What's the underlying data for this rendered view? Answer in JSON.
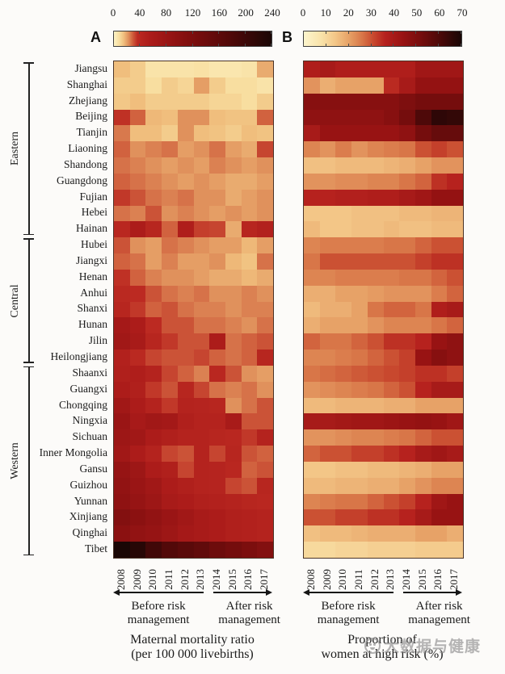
{
  "watermark": {
    "icon": "circle-smiley-logo",
    "text": "大数据与健康"
  },
  "chart_data": {
    "type": "heatmap",
    "x_years": [
      "2008",
      "2009",
      "2010",
      "2011",
      "2012",
      "2013",
      "2014",
      "2015",
      "2016",
      "2017"
    ],
    "x_annotation": {
      "before_lines": [
        "Before risk",
        "management"
      ],
      "after_lines": [
        "After risk",
        "management"
      ],
      "before_col_count": 6
    },
    "row_groups": [
      {
        "label": "Eastern",
        "count": 11
      },
      {
        "label": "Central",
        "count": 8
      },
      {
        "label": "Western",
        "count": 12
      }
    ],
    "row_labels": [
      "Jiangsu",
      "Shanghai",
      "Zhejiang",
      "Beijing",
      "Tianjin",
      "Liaoning",
      "Shandong",
      "Guangdong",
      "Fujian",
      "Hebei",
      "Hainan",
      "Hubei",
      "Jiangxi",
      "Henan",
      "Anhui",
      "Shanxi",
      "Hunan",
      "Jilin",
      "Heilongjiang",
      "Shaanxi",
      "Guangxi",
      "Chongqing",
      "Ningxia",
      "Sichuan",
      "Inner Mongolia",
      "Gansu",
      "Guizhou",
      "Yunnan",
      "Xinjiang",
      "Qinghai",
      "Tibet"
    ],
    "panels": [
      {
        "label": "A",
        "xlabel_lines": [
          "Maternal mortality ratio",
          "(per 100 000 livebirths)"
        ],
        "zmin": 0,
        "zmax": 240,
        "colorbar_ticks": [
          0,
          40,
          80,
          120,
          160,
          200,
          240
        ],
        "ramp": [
          [
            0,
            "#FDF3C5"
          ],
          [
            8,
            "#F8DEA0"
          ],
          [
            15,
            "#F0BE7D"
          ],
          [
            22,
            "#E0915C"
          ],
          [
            29,
            "#CE5A3A"
          ],
          [
            36,
            "#BC2A22"
          ],
          [
            55,
            "#AC1C1A"
          ],
          [
            85,
            "#961414"
          ],
          [
            125,
            "#780D0D"
          ],
          [
            175,
            "#520909"
          ],
          [
            240,
            "#1A0705"
          ]
        ],
        "values": [
          [
            15,
            12,
            6,
            6,
            6,
            7,
            5,
            5,
            6,
            18
          ],
          [
            12,
            12,
            8,
            12,
            10,
            20,
            12,
            8,
            8,
            6
          ],
          [
            13,
            15,
            12,
            12,
            12,
            12,
            10,
            10,
            8,
            12
          ],
          [
            35,
            28,
            16,
            15,
            22,
            22,
            15,
            14,
            14,
            28
          ],
          [
            25,
            15,
            15,
            12,
            22,
            15,
            14,
            12,
            15,
            14
          ],
          [
            28,
            22,
            24,
            26,
            20,
            22,
            26,
            20,
            18,
            32
          ],
          [
            26,
            24,
            22,
            20,
            22,
            20,
            24,
            22,
            20,
            22
          ],
          [
            28,
            26,
            24,
            22,
            20,
            22,
            20,
            18,
            18,
            20
          ],
          [
            34,
            30,
            26,
            24,
            26,
            22,
            22,
            18,
            20,
            22
          ],
          [
            26,
            24,
            30,
            22,
            24,
            22,
            20,
            22,
            20,
            22
          ],
          [
            40,
            55,
            42,
            28,
            52,
            33,
            32,
            18,
            42,
            48
          ],
          [
            30,
            22,
            20,
            26,
            24,
            22,
            20,
            20,
            16,
            20
          ],
          [
            28,
            26,
            20,
            24,
            20,
            20,
            22,
            16,
            14,
            26
          ],
          [
            35,
            28,
            24,
            22,
            22,
            20,
            18,
            18,
            16,
            18
          ],
          [
            38,
            36,
            30,
            26,
            24,
            26,
            22,
            22,
            24,
            22
          ],
          [
            42,
            34,
            28,
            30,
            26,
            24,
            24,
            22,
            24,
            24
          ],
          [
            65,
            55,
            36,
            30,
            30,
            26,
            26,
            24,
            22,
            26
          ],
          [
            70,
            60,
            42,
            34,
            30,
            30,
            55,
            26,
            28,
            30
          ],
          [
            48,
            38,
            32,
            30,
            30,
            32,
            28,
            26,
            28,
            42
          ],
          [
            50,
            52,
            45,
            32,
            28,
            24,
            40,
            30,
            22,
            20
          ],
          [
            55,
            50,
            34,
            30,
            42,
            32,
            26,
            24,
            26,
            22
          ],
          [
            70,
            55,
            46,
            34,
            46,
            44,
            42,
            22,
            26,
            30
          ],
          [
            80,
            62,
            70,
            66,
            50,
            46,
            46,
            60,
            30,
            30
          ],
          [
            75,
            70,
            55,
            50,
            46,
            46,
            42,
            40,
            34,
            46
          ],
          [
            70,
            55,
            46,
            32,
            30,
            46,
            32,
            42,
            30,
            28
          ],
          [
            85,
            75,
            55,
            50,
            32,
            46,
            44,
            40,
            28,
            30
          ],
          [
            90,
            80,
            70,
            55,
            50,
            46,
            44,
            32,
            30,
            42
          ],
          [
            95,
            85,
            75,
            60,
            55,
            50,
            48,
            46,
            42,
            40
          ],
          [
            110,
            100,
            90,
            80,
            70,
            60,
            55,
            50,
            48,
            46
          ],
          [
            100,
            90,
            85,
            75,
            65,
            60,
            55,
            50,
            48,
            46
          ],
          [
            240,
            225,
            195,
            175,
            165,
            155,
            140,
            130,
            120,
            110
          ]
        ]
      },
      {
        "label": "B",
        "xlabel_lines": [
          "Proportion of",
          "women at high risk (%)"
        ],
        "zmin": 0,
        "zmax": 70,
        "colorbar_ticks": [
          0,
          10,
          20,
          30,
          40,
          50,
          60,
          70
        ],
        "ramp": [
          [
            0,
            "#FDF5CD"
          ],
          [
            8,
            "#F9E2A8"
          ],
          [
            14,
            "#F3C687"
          ],
          [
            20,
            "#E7A267"
          ],
          [
            26,
            "#D87648"
          ],
          [
            31,
            "#C8482E"
          ],
          [
            36,
            "#B6221E"
          ],
          [
            44,
            "#981313"
          ],
          [
            52,
            "#750D0D"
          ],
          [
            60,
            "#4E0909"
          ],
          [
            70,
            "#180605"
          ]
        ],
        "values": [
          [
            38,
            40,
            38,
            38,
            38,
            38,
            38,
            42,
            42,
            42
          ],
          [
            22,
            18,
            20,
            20,
            20,
            35,
            40,
            45,
            45,
            45
          ],
          [
            48,
            48,
            48,
            48,
            48,
            48,
            50,
            52,
            52,
            52
          ],
          [
            46,
            46,
            46,
            46,
            46,
            48,
            52,
            60,
            66,
            65
          ],
          [
            40,
            44,
            44,
            44,
            44,
            44,
            46,
            52,
            55,
            55
          ],
          [
            24,
            22,
            25,
            22,
            24,
            25,
            26,
            30,
            32,
            30
          ],
          [
            15,
            15,
            16,
            16,
            16,
            17,
            18,
            20,
            22,
            22
          ],
          [
            22,
            22,
            23,
            23,
            24,
            24,
            26,
            28,
            34,
            36
          ],
          [
            36,
            36,
            37,
            37,
            38,
            38,
            40,
            42,
            45,
            45
          ],
          [
            14,
            14,
            14,
            15,
            15,
            15,
            16,
            16,
            17,
            17
          ],
          [
            16,
            14,
            14,
            15,
            15,
            16,
            15,
            15,
            16,
            16
          ],
          [
            24,
            25,
            25,
            25,
            25,
            26,
            26,
            28,
            30,
            30
          ],
          [
            26,
            30,
            30,
            30,
            30,
            30,
            30,
            32,
            34,
            34
          ],
          [
            24,
            24,
            25,
            25,
            25,
            25,
            26,
            26,
            28,
            30
          ],
          [
            18,
            18,
            20,
            20,
            21,
            22,
            22,
            22,
            25,
            28
          ],
          [
            16,
            18,
            18,
            20,
            26,
            28,
            28,
            26,
            38,
            40
          ],
          [
            18,
            20,
            20,
            20,
            22,
            24,
            24,
            24,
            26,
            28
          ],
          [
            28,
            26,
            26,
            28,
            30,
            34,
            34,
            36,
            44,
            46
          ],
          [
            24,
            24,
            25,
            26,
            28,
            30,
            32,
            44,
            48,
            46
          ],
          [
            26,
            27,
            28,
            29,
            30,
            31,
            32,
            34,
            34,
            32
          ],
          [
            22,
            23,
            24,
            25,
            26,
            28,
            30,
            36,
            40,
            40
          ],
          [
            16,
            16,
            17,
            17,
            17,
            18,
            18,
            20,
            20,
            20
          ],
          [
            40,
            40,
            41,
            42,
            42,
            43,
            44,
            45,
            44,
            42
          ],
          [
            22,
            22,
            23,
            24,
            24,
            25,
            26,
            28,
            30,
            30
          ],
          [
            28,
            30,
            30,
            32,
            32,
            34,
            36,
            40,
            42,
            40
          ],
          [
            14,
            14,
            15,
            15,
            16,
            16,
            17,
            18,
            20,
            20
          ],
          [
            16,
            16,
            17,
            17,
            18,
            18,
            20,
            22,
            24,
            24
          ],
          [
            24,
            25,
            26,
            26,
            28,
            30,
            32,
            36,
            42,
            44
          ],
          [
            30,
            30,
            32,
            32,
            34,
            34,
            36,
            40,
            44,
            44
          ],
          [
            15,
            16,
            16,
            17,
            18,
            18,
            18,
            20,
            20,
            18
          ],
          [
            10,
            10,
            11,
            11,
            12,
            12,
            12,
            13,
            13,
            13
          ]
        ]
      }
    ]
  }
}
